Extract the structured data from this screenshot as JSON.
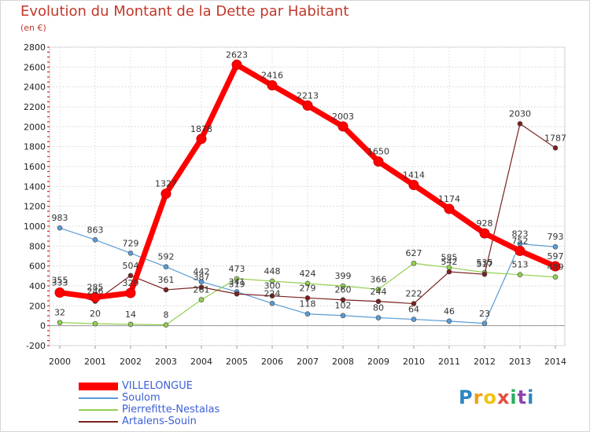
{
  "title": "Evolution du Montant de la Dette par Habitant",
  "unit": "(en €)",
  "brand": "Proxiti",
  "brand_letters": [
    {
      "ch": "P",
      "color": "#2e86c1"
    },
    {
      "ch": "r",
      "color": "#f39c12"
    },
    {
      "ch": "o",
      "color": "#f1c40f"
    },
    {
      "ch": "x",
      "color": "#e74c3c"
    },
    {
      "ch": "i",
      "color": "#27ae60"
    },
    {
      "ch": "t",
      "color": "#8e44ad"
    },
    {
      "ch": "i",
      "color": "#2e86c1"
    }
  ],
  "chart_data": {
    "type": "line",
    "title": "Evolution du Montant de la Dette par Habitant",
    "ylabel": "(en €)",
    "xlabel": "",
    "x": [
      "2000",
      "2001",
      "2002",
      "2003",
      "2004",
      "2005",
      "2006",
      "2007",
      "2008",
      "2009",
      "2010",
      "2011",
      "2012",
      "2013",
      "2014"
    ],
    "ylim": [
      -200,
      2800
    ],
    "yticks": [
      -200,
      0,
      200,
      400,
      600,
      800,
      1000,
      1200,
      1400,
      1600,
      1800,
      2000,
      2200,
      2400,
      2600,
      2800
    ],
    "grid": true,
    "legend_position": "bottom-left",
    "series": [
      {
        "name": "VILLELONGUE",
        "color": "#ff0000",
        "width": 7,
        "marker": 6,
        "values": [
          333,
          285,
          329,
          1327,
          1878,
          2623,
          2416,
          2213,
          2003,
          1650,
          1414,
          1174,
          928,
          752,
          597
        ],
        "labels": [
          "333",
          "285",
          "329",
          "1327",
          "1878",
          "2623",
          "2416",
          "2213",
          "2003",
          "1650",
          "1414",
          "1174",
          "928",
          "752",
          "597"
        ]
      },
      {
        "name": "Soulom",
        "color": "#5b9bd5",
        "width": 1.2,
        "marker": 3,
        "values": [
          983,
          863,
          729,
          592,
          442,
          341,
          224,
          118,
          102,
          80,
          64,
          46,
          23,
          823,
          793
        ],
        "labels": [
          "983",
          "863",
          "729",
          "592",
          "442",
          "341",
          "224",
          "118",
          "102",
          "80",
          "64",
          "46",
          "23",
          "823",
          "793"
        ]
      },
      {
        "name": "Pierrefitte-Nestalas",
        "color": "#92d050",
        "width": 1.2,
        "marker": 3,
        "values": [
          32,
          20,
          14,
          8,
          261,
          473,
          448,
          424,
          399,
          366,
          627,
          585,
          535,
          513,
          489
        ],
        "labels": [
          "32",
          "20",
          "14",
          "8",
          "261",
          "473",
          "448",
          "424",
          "399",
          "366",
          "627",
          "585",
          "535",
          "513",
          "489"
        ]
      },
      {
        "name": "Artalens-Souin",
        "color": "#7b1f1f",
        "width": 1.2,
        "marker": 3,
        "values": [
          355,
          246,
          504,
          361,
          387,
          319,
          300,
          279,
          260,
          244,
          222,
          542,
          517,
          2030,
          1787
        ],
        "labels": [
          "355",
          "246",
          "504",
          "361",
          "387",
          "319",
          "300",
          "279",
          "260",
          "244",
          "222",
          "542",
          "517",
          "2030",
          "1787"
        ]
      }
    ]
  }
}
